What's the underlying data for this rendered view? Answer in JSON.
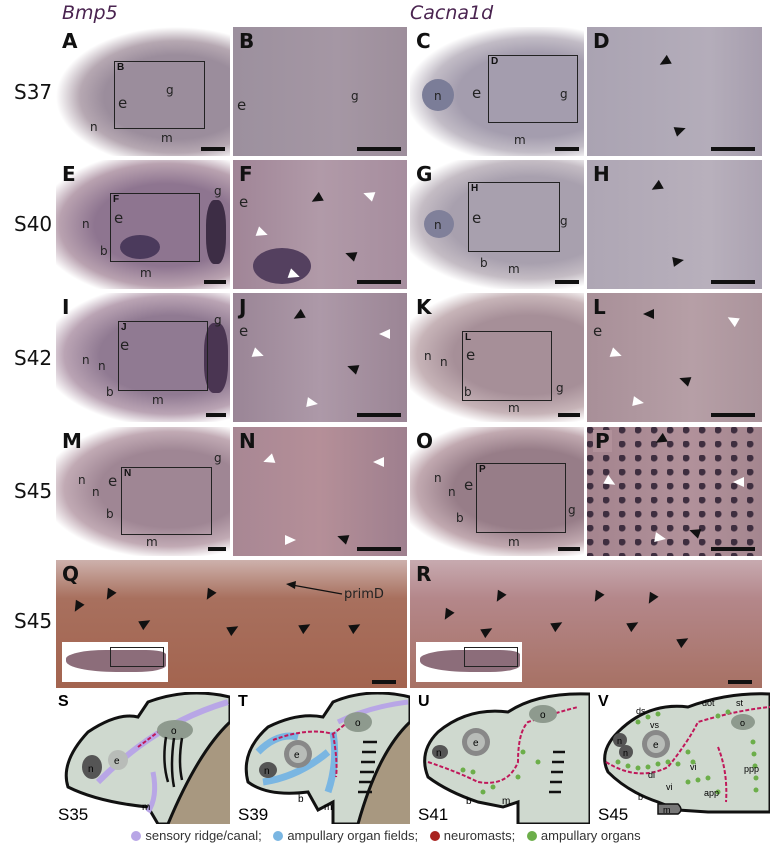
{
  "titles": {
    "left": "Bmp5",
    "right": "Cacna1d"
  },
  "rows": [
    "S37",
    "S40",
    "S42",
    "S45",
    "S45"
  ],
  "panels": {
    "A": {
      "letter": "A",
      "box": "B",
      "labels": [
        "e",
        "n",
        "m",
        "g"
      ]
    },
    "B": {
      "letter": "B",
      "labels": [
        "e",
        "g"
      ]
    },
    "C": {
      "letter": "C",
      "box": "D",
      "labels": [
        "n",
        "e",
        "m",
        "g"
      ]
    },
    "D": {
      "letter": "D"
    },
    "E": {
      "letter": "E",
      "box": "F",
      "labels": [
        "n",
        "e",
        "b",
        "m",
        "g"
      ]
    },
    "F": {
      "letter": "F",
      "labels": [
        "e"
      ]
    },
    "G": {
      "letter": "G",
      "box": "H",
      "labels": [
        "n",
        "e",
        "b",
        "m",
        "g"
      ]
    },
    "H": {
      "letter": "H"
    },
    "I": {
      "letter": "I",
      "box": "J",
      "labels": [
        "n",
        "n",
        "e",
        "b",
        "m",
        "g"
      ]
    },
    "J": {
      "letter": "J",
      "labels": [
        "e"
      ]
    },
    "K": {
      "letter": "K",
      "box": "L",
      "labels": [
        "n",
        "n",
        "e",
        "b",
        "m",
        "g"
      ]
    },
    "L": {
      "letter": "L",
      "labels": [
        "e"
      ]
    },
    "M": {
      "letter": "M",
      "box": "N",
      "labels": [
        "n",
        "n",
        "e",
        "b",
        "m",
        "g"
      ]
    },
    "N": {
      "letter": "N"
    },
    "O": {
      "letter": "O",
      "box": "P",
      "labels": [
        "n",
        "n",
        "e",
        "b",
        "m",
        "g"
      ]
    },
    "P": {
      "letter": "P"
    },
    "Q": {
      "letter": "Q",
      "annotation": "primD"
    },
    "R": {
      "letter": "R"
    }
  },
  "diagrams": [
    {
      "letter": "S",
      "stage": "S35",
      "labels": [
        "n",
        "e",
        "o",
        "m"
      ]
    },
    {
      "letter": "T",
      "stage": "S39",
      "labels": [
        "n",
        "e",
        "o",
        "b",
        "m"
      ]
    },
    {
      "letter": "U",
      "stage": "S41",
      "labels": [
        "n",
        "e",
        "o",
        "b",
        "m"
      ]
    },
    {
      "letter": "V",
      "stage": "S45",
      "labels": [
        "n",
        "n",
        "e",
        "o",
        "b",
        "m",
        "ds",
        "vs",
        "dot",
        "st",
        "di",
        "vi",
        "vi",
        "app",
        "ppp"
      ]
    }
  ],
  "legend": [
    {
      "label": "sensory ridge/canal;",
      "color": "#b8a6e6"
    },
    {
      "label": "ampullary organ fields;",
      "color": "#7ab6e2"
    },
    {
      "label": "neuromasts;",
      "color": "#a8231f"
    },
    {
      "label": "ampullary organs",
      "color": "#6cae4a"
    }
  ],
  "colors": {
    "bmp5_bg": "#8f7f8c",
    "cacna1d_bg": "#a09aa8",
    "stain": "#4b3a5c",
    "neuromast_line": "#c0185a"
  }
}
